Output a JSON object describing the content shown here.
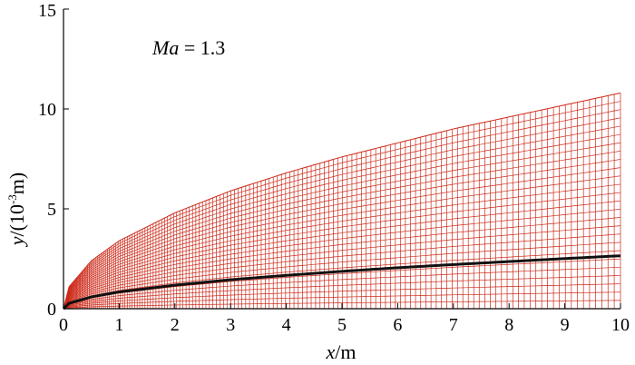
{
  "chart_data": {
    "type": "line",
    "xlabel_var": "x",
    "xlabel_unit": "/m",
    "ylabel_var": "y",
    "ylabel_unit_pre": "/(10",
    "ylabel_unit_sup": "-3",
    "ylabel_unit_post": "m)",
    "annotation_var": "Ma",
    "annotation_rest": " = 1.3",
    "xlim": [
      0,
      10
    ],
    "ylim": [
      0,
      15
    ],
    "x_ticks": [
      0,
      1,
      2,
      3,
      4,
      5,
      6,
      7,
      8,
      9,
      10
    ],
    "y_ticks": [
      0,
      5,
      10
    ],
    "grid": false,
    "colors": {
      "mesh": "#cc2a1a",
      "boundary_layer": "#111111",
      "axes": "#000000"
    },
    "series": [
      {
        "role": "mesh upper boundary",
        "x": [
          0,
          0.1,
          0.5,
          1,
          2,
          3,
          4,
          5,
          6,
          7,
          8,
          9,
          10
        ],
        "y": [
          0,
          1.1,
          2.4,
          3.4,
          4.8,
          5.9,
          6.8,
          7.6,
          8.3,
          9.0,
          9.6,
          10.2,
          10.8
        ]
      },
      {
        "role": "boundary-layer thickness curve",
        "x": [
          0,
          0.1,
          0.5,
          1,
          2,
          3,
          4,
          5,
          6,
          7,
          8,
          9,
          10
        ],
        "y": [
          0,
          0.27,
          0.59,
          0.84,
          1.18,
          1.45,
          1.67,
          1.87,
          2.05,
          2.21,
          2.36,
          2.51,
          2.65
        ]
      }
    ],
    "mesh": {
      "n_x_lines": 160,
      "n_y_lines": 26,
      "x_clustering_exponent": 1.8
    }
  }
}
